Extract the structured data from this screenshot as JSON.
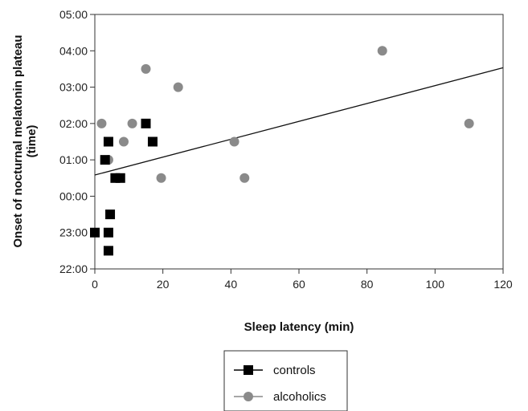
{
  "chart_data": {
    "type": "scatter",
    "xlabel": "Sleep latency (min)",
    "ylabel_line1": "Onset of nocturnal melatonin plateau",
    "ylabel_line2": "(time)",
    "xlim": [
      0,
      120
    ],
    "x_ticks": [
      0,
      20,
      40,
      60,
      80,
      100,
      120
    ],
    "y_ticks": [
      "22:00",
      "23:00",
      "00:00",
      "01:00",
      "02:00",
      "03:00",
      "04:00",
      "05:00"
    ],
    "ylim": [
      "22:00",
      "05:00"
    ],
    "grid": false,
    "legend_position": "bottom-center",
    "series": [
      {
        "name": "controls",
        "marker": "square",
        "color": "#000000",
        "points": [
          {
            "x": 0,
            "y": "23:00"
          },
          {
            "x": 3,
            "y": "01:00"
          },
          {
            "x": 4,
            "y": "01:30"
          },
          {
            "x": 4,
            "y": "23:00"
          },
          {
            "x": 4,
            "y": "22:30"
          },
          {
            "x": 4.5,
            "y": "23:30"
          },
          {
            "x": 6,
            "y": "00:30"
          },
          {
            "x": 7.5,
            "y": "00:30"
          },
          {
            "x": 15,
            "y": "02:00"
          },
          {
            "x": 17,
            "y": "01:30"
          }
        ]
      },
      {
        "name": "alcoholics",
        "marker": "circle",
        "color": "#8a8a8a",
        "points": [
          {
            "x": 2,
            "y": "02:00"
          },
          {
            "x": 4,
            "y": "01:00"
          },
          {
            "x": 8.5,
            "y": "01:30"
          },
          {
            "x": 11,
            "y": "02:00"
          },
          {
            "x": 15,
            "y": "03:30"
          },
          {
            "x": 19.5,
            "y": "00:30"
          },
          {
            "x": 24.5,
            "y": "03:00"
          },
          {
            "x": 41,
            "y": "01:30"
          },
          {
            "x": 44,
            "y": "00:30"
          },
          {
            "x": 84.5,
            "y": "04:00"
          },
          {
            "x": 110,
            "y": "02:00"
          }
        ]
      }
    ],
    "trendline": {
      "start": {
        "x": 0,
        "y": "00:35"
      },
      "end": {
        "x": 120,
        "y": "03:32"
      }
    }
  }
}
